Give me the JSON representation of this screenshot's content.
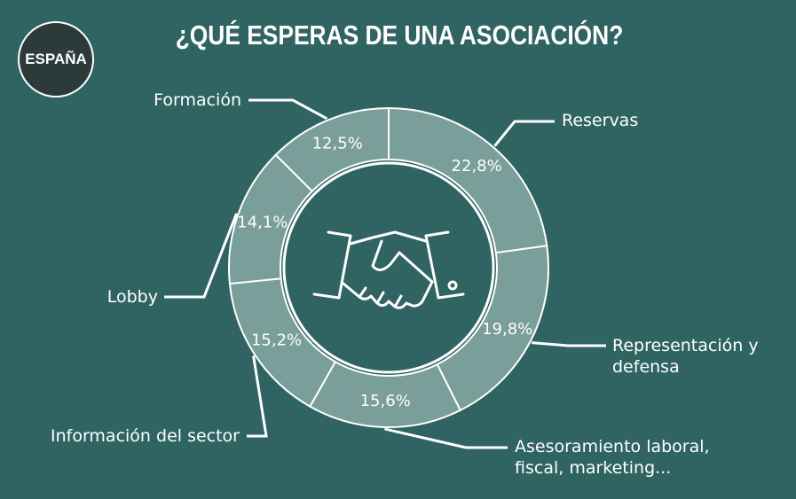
{
  "badge": "ESPAÑA",
  "chart_data": {
    "type": "pie",
    "title": "¿QUÉ ESPERAS DE UNA ASOCIACIÓN?",
    "categories": [
      "Reservas",
      "Representación y defensa",
      "Asesoramiento laboral, fiscal, marketing...",
      "Información del sector",
      "Lobby",
      "Formación"
    ],
    "values": [
      22.8,
      19.8,
      15.6,
      15.2,
      14.1,
      12.5
    ],
    "value_labels": [
      "22,8%",
      "19,8%",
      "15,6%",
      "15,2%",
      "14,1%",
      "12,5%"
    ],
    "color": "#7a9e99"
  }
}
